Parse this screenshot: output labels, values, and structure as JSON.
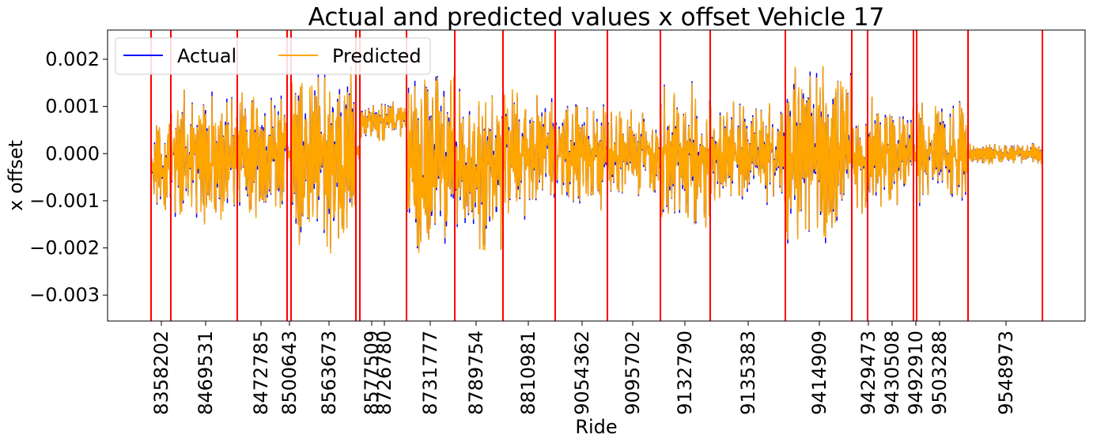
{
  "chart_data": {
    "type": "line",
    "title": "Actual and predicted values x offset Vehicle 17",
    "xlabel": "Ride",
    "ylabel": "x offset",
    "ylim": [
      -0.00355,
      0.00262
    ],
    "yticks": [
      0.002,
      0.001,
      0.0,
      -0.001,
      -0.002,
      -0.003
    ],
    "ytick_labels": [
      "0.002",
      "0.001",
      "0.000",
      "−0.001",
      "−0.002",
      "−0.003"
    ],
    "xticks": [
      "8358202",
      "8469531",
      "8472785",
      "8500643",
      "8563673",
      "8577509",
      "8726780",
      "8731777",
      "8789754",
      "8810981",
      "9054362",
      "9095702",
      "9132790",
      "9135383",
      "9414909",
      "9429473",
      "9430508",
      "9492910",
      "9503288",
      "9548973"
    ],
    "legend": {
      "placement": "top-left",
      "columns": 2
    },
    "grid": false,
    "series": [
      {
        "name": "Actual",
        "color": "#0000ff"
      },
      {
        "name": "Predicted",
        "color": "#ffa500"
      }
    ],
    "ride_boundary_color": "#ff0000",
    "segments": [
      {
        "mid": -0.0003,
        "amp": 0.0008
      },
      {
        "mid": -0.0001,
        "amp": 0.0013
      },
      {
        "mid": 0.0,
        "amp": 0.0012
      },
      {
        "mid": 0.0,
        "amp": 0.0002
      },
      {
        "mid": -0.0001,
        "amp": 0.0017
      },
      {
        "mid": 0.0,
        "amp": 0.0002
      },
      {
        "mid": 0.0007,
        "amp": 0.0004
      },
      {
        "mid": -0.0002,
        "amp": 0.0017
      },
      {
        "mid": -0.0003,
        "amp": 0.0015
      },
      {
        "mid": 0.0,
        "amp": 0.0012
      },
      {
        "mid": 0.0,
        "amp": 0.001
      },
      {
        "mid": 0.0,
        "amp": 0.0008
      },
      {
        "mid": 0.0,
        "amp": 0.0013
      },
      {
        "mid": 0.0,
        "amp": 0.001
      },
      {
        "mid": 0.0,
        "amp": 0.0016
      },
      {
        "mid": -0.0001,
        "amp": 0.001
      },
      {
        "mid": 0.0,
        "amp": 0.001
      },
      {
        "mid": 0.0,
        "amp": 0.0002
      },
      {
        "mid": 0.0,
        "amp": 0.001
      },
      {
        "mid": 0.0,
        "amp": 0.0002
      },
      {
        "mid": 0.0005,
        "amp": 0.0004
      }
    ]
  }
}
